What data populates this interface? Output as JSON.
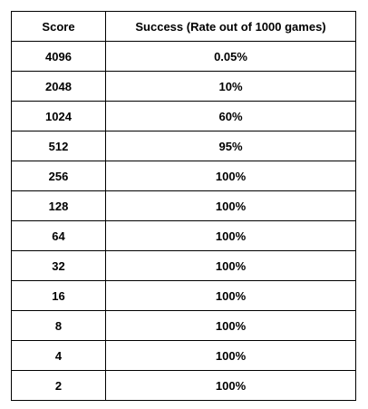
{
  "table": {
    "headers": [
      "Score",
      "Success (Rate out of 1000 games)"
    ],
    "rows": [
      {
        "score": "4096",
        "success": "0.05%"
      },
      {
        "score": "2048",
        "success": "10%"
      },
      {
        "score": "1024",
        "success": "60%"
      },
      {
        "score": "512",
        "success": "95%"
      },
      {
        "score": "256",
        "success": "100%"
      },
      {
        "score": "128",
        "success": "100%"
      },
      {
        "score": "64",
        "success": "100%"
      },
      {
        "score": "32",
        "success": "100%"
      },
      {
        "score": "16",
        "success": "100%"
      },
      {
        "score": "8",
        "success": "100%"
      },
      {
        "score": "4",
        "success": "100%"
      },
      {
        "score": "2",
        "success": "100%"
      }
    ]
  }
}
